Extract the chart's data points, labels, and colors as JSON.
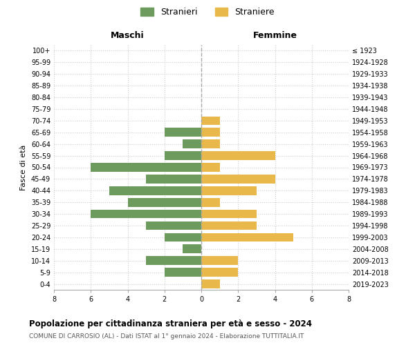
{
  "age_groups": [
    "0-4",
    "5-9",
    "10-14",
    "15-19",
    "20-24",
    "25-29",
    "30-34",
    "35-39",
    "40-44",
    "45-49",
    "50-54",
    "55-59",
    "60-64",
    "65-69",
    "70-74",
    "75-79",
    "80-84",
    "85-89",
    "90-94",
    "95-99",
    "100+"
  ],
  "birth_years": [
    "2019-2023",
    "2014-2018",
    "2009-2013",
    "2004-2008",
    "1999-2003",
    "1994-1998",
    "1989-1993",
    "1984-1988",
    "1979-1983",
    "1974-1978",
    "1969-1973",
    "1964-1968",
    "1959-1963",
    "1954-1958",
    "1949-1953",
    "1944-1948",
    "1939-1943",
    "1934-1938",
    "1929-1933",
    "1924-1928",
    "≤ 1923"
  ],
  "maschi": [
    0,
    2,
    3,
    1,
    2,
    3,
    6,
    4,
    5,
    3,
    6,
    2,
    1,
    2,
    0,
    0,
    0,
    0,
    0,
    0,
    0
  ],
  "femmine": [
    1,
    2,
    2,
    0,
    5,
    3,
    3,
    1,
    3,
    4,
    1,
    4,
    1,
    1,
    1,
    0,
    0,
    0,
    0,
    0,
    0
  ],
  "maschi_color": "#6d9b5e",
  "femmine_color": "#e8b84b",
  "title": "Popolazione per cittadinanza straniera per età e sesso - 2024",
  "subtitle": "COMUNE DI CARROSIO (AL) - Dati ISTAT al 1° gennaio 2024 - Elaborazione TUTTITALIA.IT",
  "xlabel_left": "Maschi",
  "xlabel_right": "Femmine",
  "ylabel_left": "Fasce di età",
  "legend_maschi": "Stranieri",
  "legend_femmine": "Straniere",
  "xlim": 8,
  "background_color": "#ffffff",
  "grid_color": "#cccccc"
}
